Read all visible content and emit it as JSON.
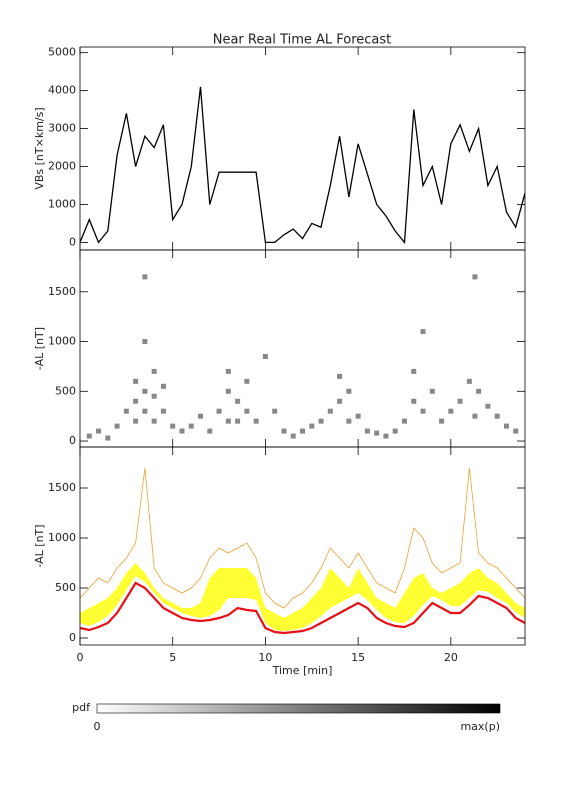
{
  "chart_data": [
    {
      "type": "line",
      "title": "Near Real Time AL Forecast",
      "ylabel": "VBs [nT×km/s]",
      "color": "#000000",
      "x": [
        0,
        0.5,
        1,
        1.5,
        2,
        2.5,
        3,
        3.5,
        4,
        4.5,
        5,
        5.5,
        6,
        6.5,
        7,
        7.5,
        8,
        8.5,
        9,
        9.5,
        10,
        10.5,
        11,
        11.5,
        12,
        12.5,
        13,
        13.5,
        14,
        14.5,
        15,
        15.5,
        16,
        16.5,
        17,
        17.5,
        18,
        18.5,
        19,
        19.5,
        20,
        20.5,
        21,
        21.5,
        22,
        22.5,
        23,
        23.5,
        24
      ],
      "values": [
        0,
        600,
        0,
        300,
        2300,
        3400,
        2000,
        2800,
        2500,
        3100,
        600,
        1000,
        2000,
        4100,
        1000,
        1850,
        1850,
        1850,
        1850,
        1850,
        0,
        0,
        200,
        350,
        100,
        500,
        400,
        1500,
        2800,
        1200,
        2600,
        1800,
        1000,
        700,
        300,
        0,
        3500,
        1500,
        2000,
        1000,
        2600,
        3100,
        2400,
        3000,
        1500,
        2000,
        800,
        400,
        1300
      ],
      "xlim": [
        0,
        24
      ],
      "xticks": [
        0,
        5,
        10,
        15,
        20
      ],
      "ylim": [
        -200,
        5150
      ],
      "yticks": [
        0,
        1000,
        2000,
        3000,
        4000,
        5000
      ]
    },
    {
      "type": "scatter",
      "ylabel": "-AL [nT]",
      "color": "#555555",
      "x": [
        0.5,
        1,
        1.5,
        2,
        2.5,
        3,
        3,
        3,
        3.5,
        3.5,
        3.5,
        3.5,
        4,
        4,
        4,
        4.5,
        4.5,
        5,
        5.5,
        6,
        6.5,
        7,
        7.5,
        8,
        8,
        8,
        8.5,
        8.5,
        9,
        9,
        9.5,
        10,
        10.5,
        11,
        11.5,
        12,
        12.5,
        13,
        13.5,
        14,
        14,
        14.5,
        14.5,
        15,
        15.5,
        16,
        16.5,
        17,
        17.5,
        18,
        18,
        18.5,
        18.5,
        19,
        19.5,
        20,
        20.5,
        21,
        21.3,
        21.3,
        21.5,
        22,
        22.5,
        23,
        23.5
      ],
      "values": [
        50,
        100,
        30,
        150,
        300,
        400,
        600,
        200,
        500,
        1000,
        1650,
        300,
        700,
        450,
        200,
        550,
        300,
        150,
        100,
        150,
        250,
        100,
        300,
        200,
        500,
        700,
        400,
        200,
        600,
        300,
        200,
        850,
        300,
        100,
        50,
        100,
        150,
        200,
        300,
        400,
        650,
        500,
        200,
        250,
        100,
        80,
        50,
        100,
        200,
        400,
        700,
        1100,
        300,
        500,
        200,
        300,
        400,
        600,
        1650,
        250,
        500,
        350,
        250,
        150,
        100
      ],
      "xlim": [
        0,
        24
      ],
      "xticks": [
        0,
        5,
        10,
        15,
        20
      ],
      "ylim": [
        -60,
        1920
      ],
      "yticks": [
        0,
        500,
        1000,
        1500
      ]
    },
    {
      "type": "area",
      "ylabel": "-AL [nT]",
      "xlabel": "Time [min]",
      "x": [
        0,
        0.5,
        1,
        1.5,
        2,
        2.5,
        3,
        3.5,
        4,
        4.5,
        5,
        5.5,
        6,
        6.5,
        7,
        7.5,
        8,
        8.5,
        9,
        9.5,
        10,
        10.5,
        11,
        11.5,
        12,
        12.5,
        13,
        13.5,
        14,
        14.5,
        15,
        15.5,
        16,
        16.5,
        17,
        17.5,
        18,
        18.5,
        19,
        19.5,
        20,
        20.5,
        21,
        21.5,
        22,
        22.5,
        23,
        23.5,
        24
      ],
      "band": {
        "color": "#ffff33",
        "lower": [
          150,
          120,
          160,
          220,
          330,
          480,
          620,
          560,
          450,
          350,
          300,
          250,
          220,
          200,
          220,
          280,
          400,
          400,
          400,
          380,
          150,
          80,
          70,
          80,
          100,
          150,
          220,
          300,
          350,
          400,
          450,
          380,
          280,
          200,
          160,
          150,
          220,
          330,
          420,
          380,
          320,
          320,
          400,
          480,
          460,
          400,
          350,
          260,
          200
        ],
        "upper": [
          250,
          300,
          350,
          400,
          500,
          650,
          750,
          650,
          500,
          400,
          350,
          300,
          300,
          350,
          600,
          700,
          700,
          700,
          700,
          600,
          300,
          250,
          200,
          250,
          300,
          400,
          500,
          700,
          600,
          500,
          700,
          550,
          400,
          350,
          300,
          450,
          600,
          650,
          500,
          450,
          500,
          550,
          650,
          700,
          600,
          550,
          450,
          350,
          300
        ]
      },
      "series": [
        {
          "color": "#f0a030",
          "values": [
            400,
            500,
            600,
            550,
            700,
            800,
            950,
            1700,
            700,
            550,
            500,
            450,
            500,
            600,
            800,
            900,
            850,
            900,
            950,
            800,
            450,
            350,
            300,
            400,
            450,
            550,
            700,
            900,
            800,
            700,
            850,
            700,
            550,
            500,
            450,
            700,
            1100,
            1000,
            750,
            650,
            700,
            750,
            1700,
            850,
            750,
            700,
            600,
            500,
            400
          ]
        },
        {
          "color": "#e81018",
          "values": [
            100,
            80,
            110,
            150,
            250,
            400,
            550,
            500,
            400,
            300,
            250,
            200,
            180,
            170,
            180,
            200,
            230,
            300,
            280,
            270,
            100,
            60,
            50,
            60,
            70,
            100,
            150,
            200,
            250,
            300,
            350,
            300,
            200,
            150,
            120,
            110,
            150,
            250,
            350,
            300,
            250,
            250,
            330,
            420,
            400,
            350,
            300,
            200,
            150
          ]
        }
      ],
      "xlim": [
        0,
        24
      ],
      "xticks": [
        0,
        5,
        10,
        15,
        20
      ],
      "ylim": [
        -70,
        1910
      ],
      "yticks": [
        0,
        500,
        1000,
        1500
      ]
    }
  ],
  "colorbar": {
    "label": "pdf",
    "min_label": "0",
    "max_label": "max(p)"
  }
}
